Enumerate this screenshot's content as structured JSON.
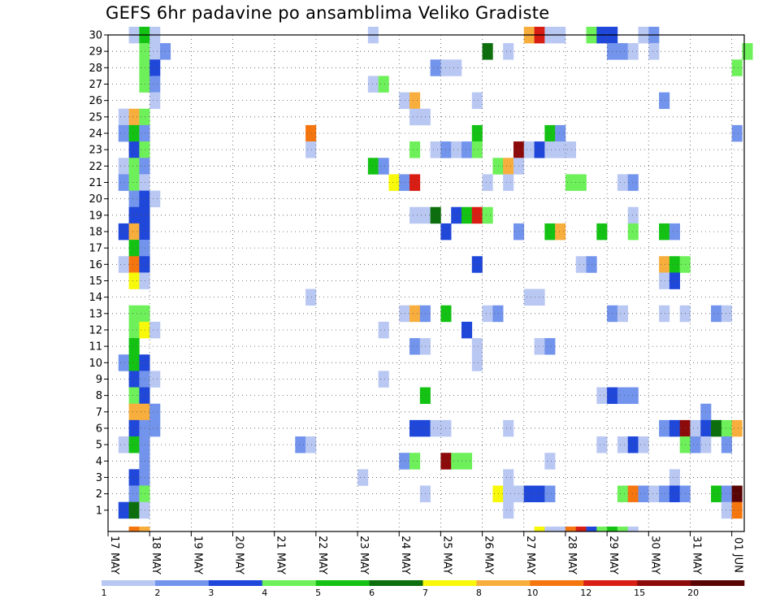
{
  "chart_data": {
    "type": "heatmap",
    "title": "GEFS 6hr padavine po ansamblima Veliko Gradiste",
    "y_ticks": [
      "1",
      "2",
      "3",
      "4",
      "5",
      "6",
      "7",
      "8",
      "9",
      "10",
      "11",
      "12",
      "13",
      "14",
      "15",
      "16",
      "17",
      "18",
      "19",
      "20",
      "21",
      "22",
      "23",
      "24",
      "25",
      "26",
      "27",
      "28",
      "29",
      "30"
    ],
    "y_range": [
      0,
      30
    ],
    "x_tick_labels": [
      "17 MAY",
      "18 MAY",
      "19 MAY",
      "20 MAY",
      "21 MAY",
      "22 MAY",
      "23 MAY",
      "24 MAY",
      "25 MAY",
      "26 MAY",
      "27 MAY",
      "28 MAY",
      "29 MAY",
      "30 MAY",
      "31 MAY",
      "01 JUN"
    ],
    "x_range_days": [
      0,
      15.3
    ],
    "grid": true,
    "colorbar": {
      "labels": [
        "1",
        "2",
        "3",
        "4",
        "5",
        "6",
        "7",
        "8",
        "10",
        "12",
        "15",
        "20"
      ],
      "colors": [
        "#b9c8f3",
        "#7394ec",
        "#1f47d9",
        "#6ef05a",
        "#14c214",
        "#0c6e0c",
        "#f8f80a",
        "#f8ae3c",
        "#f5760f",
        "#d81e14",
        "#8c0a0a",
        "#5a0505"
      ]
    },
    "cells": [
      [
        2,
        30,
        0
      ],
      [
        3,
        30,
        4
      ],
      [
        4,
        30,
        0
      ],
      [
        25,
        30,
        0
      ],
      [
        40,
        30,
        7
      ],
      [
        41,
        30,
        9
      ],
      [
        42,
        30,
        0
      ],
      [
        43,
        30,
        0
      ],
      [
        46,
        30,
        3
      ],
      [
        47,
        30,
        2
      ],
      [
        48,
        30,
        2
      ],
      [
        51,
        30,
        0
      ],
      [
        52,
        30,
        1
      ],
      [
        3,
        29,
        3
      ],
      [
        4,
        29,
        0
      ],
      [
        5,
        29,
        1
      ],
      [
        36,
        29,
        5
      ],
      [
        38,
        29,
        0
      ],
      [
        48,
        29,
        1
      ],
      [
        49,
        29,
        1
      ],
      [
        50,
        29,
        0
      ],
      [
        52,
        29,
        0
      ],
      [
        61,
        29,
        3
      ],
      [
        3,
        28,
        3
      ],
      [
        4,
        28,
        2
      ],
      [
        31,
        28,
        1
      ],
      [
        32,
        28,
        0
      ],
      [
        33,
        28,
        0
      ],
      [
        60,
        28,
        3
      ],
      [
        3,
        27,
        3
      ],
      [
        4,
        27,
        1
      ],
      [
        25,
        27,
        0
      ],
      [
        26,
        27,
        3
      ],
      [
        4,
        26,
        0
      ],
      [
        28,
        26,
        0
      ],
      [
        29,
        26,
        7
      ],
      [
        35,
        26,
        0
      ],
      [
        53,
        26,
        1
      ],
      [
        1,
        25,
        0
      ],
      [
        2,
        25,
        7
      ],
      [
        3,
        25,
        3
      ],
      [
        29,
        25,
        0
      ],
      [
        30,
        25,
        0
      ],
      [
        1,
        24,
        1
      ],
      [
        2,
        24,
        4
      ],
      [
        3,
        24,
        1
      ],
      [
        19,
        24,
        8
      ],
      [
        35,
        24,
        4
      ],
      [
        42,
        24,
        4
      ],
      [
        43,
        24,
        1
      ],
      [
        60,
        24,
        1
      ],
      [
        2,
        23,
        2
      ],
      [
        3,
        23,
        3
      ],
      [
        19,
        23,
        0
      ],
      [
        29,
        23,
        3
      ],
      [
        31,
        23,
        0
      ],
      [
        32,
        23,
        1
      ],
      [
        33,
        23,
        0
      ],
      [
        34,
        23,
        1
      ],
      [
        35,
        23,
        3
      ],
      [
        39,
        23,
        10
      ],
      [
        40,
        23,
        0
      ],
      [
        41,
        23,
        2
      ],
      [
        42,
        23,
        0
      ],
      [
        43,
        23,
        0
      ],
      [
        44,
        23,
        0
      ],
      [
        1,
        22,
        0
      ],
      [
        2,
        22,
        3
      ],
      [
        3,
        22,
        1
      ],
      [
        25,
        22,
        4
      ],
      [
        26,
        22,
        1
      ],
      [
        37,
        22,
        3
      ],
      [
        38,
        22,
        7
      ],
      [
        39,
        22,
        0
      ],
      [
        1,
        21,
        1
      ],
      [
        2,
        21,
        3
      ],
      [
        3,
        21,
        0
      ],
      [
        27,
        21,
        6
      ],
      [
        28,
        21,
        1
      ],
      [
        29,
        21,
        9
      ],
      [
        36,
        21,
        0
      ],
      [
        38,
        21,
        0
      ],
      [
        44,
        21,
        3
      ],
      [
        45,
        21,
        3
      ],
      [
        49,
        21,
        0
      ],
      [
        50,
        21,
        1
      ],
      [
        2,
        20,
        1
      ],
      [
        3,
        20,
        2
      ],
      [
        4,
        20,
        0
      ],
      [
        2,
        19,
        2
      ],
      [
        3,
        19,
        2
      ],
      [
        29,
        19,
        0
      ],
      [
        30,
        19,
        0
      ],
      [
        31,
        19,
        5
      ],
      [
        33,
        19,
        2
      ],
      [
        34,
        19,
        4
      ],
      [
        35,
        19,
        9
      ],
      [
        36,
        19,
        3
      ],
      [
        50,
        19,
        0
      ],
      [
        1,
        18,
        2
      ],
      [
        2,
        18,
        7
      ],
      [
        3,
        18,
        2
      ],
      [
        32,
        18,
        2
      ],
      [
        39,
        18,
        1
      ],
      [
        42,
        18,
        4
      ],
      [
        43,
        18,
        7
      ],
      [
        47,
        18,
        4
      ],
      [
        50,
        18,
        3
      ],
      [
        53,
        18,
        4
      ],
      [
        54,
        18,
        1
      ],
      [
        2,
        17,
        4
      ],
      [
        3,
        17,
        1
      ],
      [
        35,
        16,
        2
      ],
      [
        1,
        16,
        0
      ],
      [
        2,
        16,
        8
      ],
      [
        3,
        16,
        2
      ],
      [
        45,
        16,
        0
      ],
      [
        46,
        16,
        1
      ],
      [
        53,
        16,
        7
      ],
      [
        54,
        16,
        4
      ],
      [
        55,
        16,
        3
      ],
      [
        2,
        15,
        6
      ],
      [
        3,
        15,
        0
      ],
      [
        19,
        14,
        0
      ],
      [
        40,
        14,
        0
      ],
      [
        41,
        14,
        0
      ],
      [
        53,
        15,
        0
      ],
      [
        54,
        15,
        2
      ],
      [
        2,
        13,
        3
      ],
      [
        3,
        13,
        3
      ],
      [
        28,
        13,
        0
      ],
      [
        29,
        13,
        7
      ],
      [
        30,
        13,
        1
      ],
      [
        32,
        13,
        4
      ],
      [
        36,
        13,
        0
      ],
      [
        37,
        13,
        1
      ],
      [
        48,
        13,
        1
      ],
      [
        49,
        13,
        0
      ],
      [
        53,
        13,
        0
      ],
      [
        55,
        13,
        0
      ],
      [
        58,
        13,
        1
      ],
      [
        59,
        13,
        0
      ],
      [
        2,
        12,
        3
      ],
      [
        3,
        12,
        6
      ],
      [
        4,
        12,
        0
      ],
      [
        26,
        12,
        0
      ],
      [
        34,
        12,
        2
      ],
      [
        2,
        11,
        4
      ],
      [
        29,
        11,
        1
      ],
      [
        30,
        11,
        0
      ],
      [
        35,
        11,
        0
      ],
      [
        41,
        11,
        0
      ],
      [
        42,
        11,
        1
      ],
      [
        1,
        10,
        1
      ],
      [
        2,
        10,
        4
      ],
      [
        3,
        10,
        2
      ],
      [
        35,
        10,
        0
      ],
      [
        2,
        9,
        2
      ],
      [
        3,
        9,
        1
      ],
      [
        4,
        9,
        0
      ],
      [
        26,
        9,
        0
      ],
      [
        2,
        8,
        3
      ],
      [
        3,
        8,
        2
      ],
      [
        30,
        8,
        4
      ],
      [
        47,
        8,
        0
      ],
      [
        48,
        8,
        2
      ],
      [
        49,
        8,
        1
      ],
      [
        50,
        8,
        1
      ],
      [
        2,
        7,
        7
      ],
      [
        3,
        7,
        7
      ],
      [
        4,
        7,
        1
      ],
      [
        57,
        7,
        1
      ],
      [
        2,
        6,
        2
      ],
      [
        3,
        6,
        1
      ],
      [
        4,
        6,
        1
      ],
      [
        29,
        6,
        2
      ],
      [
        30,
        6,
        2
      ],
      [
        31,
        6,
        0
      ],
      [
        32,
        6,
        0
      ],
      [
        38,
        6,
        0
      ],
      [
        53,
        6,
        1
      ],
      [
        54,
        6,
        2
      ],
      [
        55,
        6,
        10
      ],
      [
        56,
        6,
        0
      ],
      [
        57,
        6,
        2
      ],
      [
        58,
        6,
        5
      ],
      [
        59,
        6,
        3
      ],
      [
        60,
        6,
        7
      ],
      [
        1,
        5,
        0
      ],
      [
        2,
        5,
        4
      ],
      [
        3,
        5,
        1
      ],
      [
        18,
        5,
        1
      ],
      [
        19,
        5,
        0
      ],
      [
        47,
        5,
        0
      ],
      [
        49,
        5,
        0
      ],
      [
        50,
        5,
        2
      ],
      [
        51,
        5,
        0
      ],
      [
        55,
        5,
        3
      ],
      [
        56,
        5,
        1
      ],
      [
        57,
        5,
        0
      ],
      [
        59,
        5,
        1
      ],
      [
        3,
        4,
        1
      ],
      [
        28,
        4,
        1
      ],
      [
        29,
        4,
        3
      ],
      [
        32,
        4,
        10
      ],
      [
        33,
        4,
        3
      ],
      [
        34,
        4,
        3
      ],
      [
        42,
        4,
        0
      ],
      [
        2,
        3,
        2
      ],
      [
        3,
        3,
        1
      ],
      [
        24,
        3,
        0
      ],
      [
        38,
        3,
        0
      ],
      [
        54,
        3,
        0
      ],
      [
        2,
        2,
        1
      ],
      [
        3,
        2,
        3
      ],
      [
        30,
        2,
        0
      ],
      [
        37,
        2,
        6
      ],
      [
        38,
        2,
        0
      ],
      [
        39,
        2,
        0
      ],
      [
        40,
        2,
        2
      ],
      [
        41,
        2,
        2
      ],
      [
        42,
        2,
        1
      ],
      [
        49,
        2,
        3
      ],
      [
        50,
        2,
        8
      ],
      [
        51,
        2,
        1
      ],
      [
        52,
        2,
        0
      ],
      [
        53,
        2,
        1
      ],
      [
        54,
        2,
        2
      ],
      [
        55,
        2,
        1
      ],
      [
        58,
        2,
        4
      ],
      [
        59,
        2,
        1
      ],
      [
        60,
        2,
        11
      ],
      [
        1,
        1,
        2
      ],
      [
        2,
        1,
        5
      ],
      [
        3,
        1,
        0
      ],
      [
        38,
        1,
        0
      ],
      [
        59,
        1,
        0
      ],
      [
        60,
        1,
        8
      ],
      [
        2,
        0,
        8
      ],
      [
        3,
        0,
        7
      ],
      [
        41,
        0,
        6
      ],
      [
        42,
        0,
        0
      ],
      [
        43,
        0,
        0
      ],
      [
        44,
        0,
        8
      ],
      [
        45,
        0,
        9
      ],
      [
        46,
        0,
        2
      ],
      [
        47,
        0,
        3
      ],
      [
        48,
        0,
        4
      ],
      [
        49,
        0,
        3
      ],
      [
        50,
        0,
        0
      ]
    ]
  }
}
